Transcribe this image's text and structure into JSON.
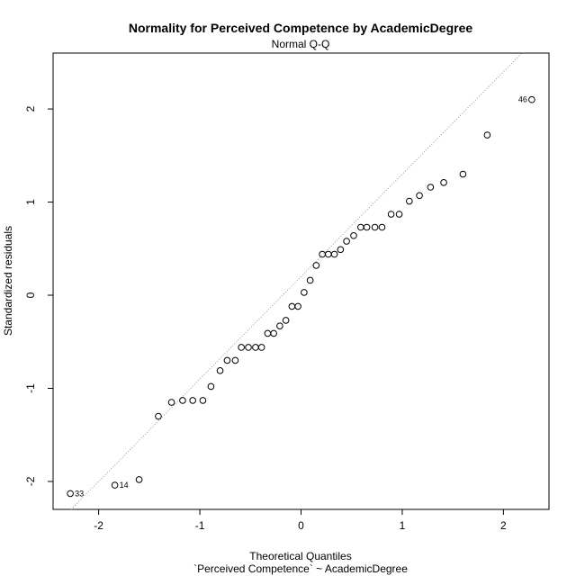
{
  "chart_data": {
    "type": "scatter",
    "title": "Normality for Perceived Competence by AcademicDegree",
    "subtitle": "Normal Q-Q",
    "xlabel": "Theoretical Quantiles",
    "xlabel2": "`Perceived Competence` ~ AcademicDegree",
    "ylabel": "Standardized residuals",
    "xlim": [
      -2.45,
      2.45
    ],
    "ylim": [
      -2.3,
      2.6
    ],
    "xticks": [
      -2,
      -1,
      0,
      1,
      2
    ],
    "yticks": [
      -2,
      -1,
      0,
      1,
      2
    ],
    "xtick_labels": [
      "-2",
      "-1",
      "0",
      "1",
      "2"
    ],
    "ytick_labels": [
      "-2",
      "-1",
      "0",
      "1",
      "2"
    ],
    "grid": false,
    "reference_line": {
      "slope": 1.1,
      "intercept": 0.2,
      "style": "dotted",
      "color": "#999999"
    },
    "points": [
      {
        "x": -2.28,
        "y": -2.13,
        "label": "33"
      },
      {
        "x": -1.84,
        "y": -2.04,
        "label": "14"
      },
      {
        "x": -1.6,
        "y": -1.98
      },
      {
        "x": -1.41,
        "y": -1.3
      },
      {
        "x": -1.28,
        "y": -1.15
      },
      {
        "x": -1.17,
        "y": -1.13
      },
      {
        "x": -1.07,
        "y": -1.13
      },
      {
        "x": -0.97,
        "y": -1.13
      },
      {
        "x": -0.89,
        "y": -0.98
      },
      {
        "x": -0.8,
        "y": -0.81
      },
      {
        "x": -0.73,
        "y": -0.7
      },
      {
        "x": -0.65,
        "y": -0.7
      },
      {
        "x": -0.59,
        "y": -0.56
      },
      {
        "x": -0.52,
        "y": -0.56
      },
      {
        "x": -0.45,
        "y": -0.56
      },
      {
        "x": -0.39,
        "y": -0.56
      },
      {
        "x": -0.33,
        "y": -0.41
      },
      {
        "x": -0.27,
        "y": -0.41
      },
      {
        "x": -0.21,
        "y": -0.33
      },
      {
        "x": -0.15,
        "y": -0.27
      },
      {
        "x": -0.09,
        "y": -0.12
      },
      {
        "x": -0.03,
        "y": -0.12
      },
      {
        "x": 0.03,
        "y": 0.03
      },
      {
        "x": 0.09,
        "y": 0.16
      },
      {
        "x": 0.15,
        "y": 0.32
      },
      {
        "x": 0.21,
        "y": 0.44
      },
      {
        "x": 0.27,
        "y": 0.44
      },
      {
        "x": 0.33,
        "y": 0.44
      },
      {
        "x": 0.39,
        "y": 0.49
      },
      {
        "x": 0.45,
        "y": 0.58
      },
      {
        "x": 0.52,
        "y": 0.64
      },
      {
        "x": 0.59,
        "y": 0.73
      },
      {
        "x": 0.65,
        "y": 0.73
      },
      {
        "x": 0.73,
        "y": 0.73
      },
      {
        "x": 0.8,
        "y": 0.73
      },
      {
        "x": 0.89,
        "y": 0.87
      },
      {
        "x": 0.97,
        "y": 0.87
      },
      {
        "x": 1.07,
        "y": 1.01
      },
      {
        "x": 1.17,
        "y": 1.07
      },
      {
        "x": 1.28,
        "y": 1.16
      },
      {
        "x": 1.41,
        "y": 1.21
      },
      {
        "x": 1.6,
        "y": 1.3
      },
      {
        "x": 1.84,
        "y": 1.72
      },
      {
        "x": 2.28,
        "y": 2.1,
        "label": "46"
      }
    ]
  }
}
